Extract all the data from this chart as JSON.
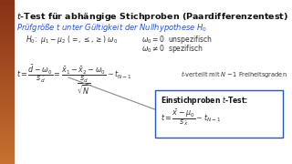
{
  "title": "$t$-Test für abhängige Stichproben (Paardifferenzentest)",
  "subtitle": "Prüfgröße $t$ unter Gültigkeit der Nullhypothese $H_0$",
  "subtitle_color": "#2255cc",
  "h0_line": "$H_0$:  $\\mu_1 - \\mu_2\\ (=,\\leq,\\geq)\\ \\omega_0$",
  "omega_unspez": "$\\omega_0 = 0$  unspezifisch",
  "omega_spez": "$\\omega_0 \\neq 0$  spezifisch",
  "main_formula_left": "$t = \\dfrac{\\bar{d} - \\omega_0}{s_{\\bar{d}}}$",
  "main_formula_eq": "$= \\dfrac{\\bar{x}_1 - \\bar{x}_2 - \\omega_0}{\\dfrac{s_d}{\\sqrt{N}}}$",
  "main_formula_sim": "$\\sim\\ t_{N-1}$",
  "t_dist_note": "$t$-verteilt mit $N-1$ Freiheitsgraden",
  "box_title": "Einstichproben $t$-Test:",
  "box_formula": "$t = \\dfrac{\\bar{x} - \\mu_0}{s_{\\bar{x}}}$",
  "box_formula2": "$\\sim\\ t_{N-1}$",
  "bg_color": "#ffffff",
  "left_grad_top": "#c87030",
  "left_grad_bot": "#7a3010",
  "box_border_color": "#2255cc",
  "title_color": "#111111",
  "formula_color": "#333333",
  "line_color": "#888888"
}
